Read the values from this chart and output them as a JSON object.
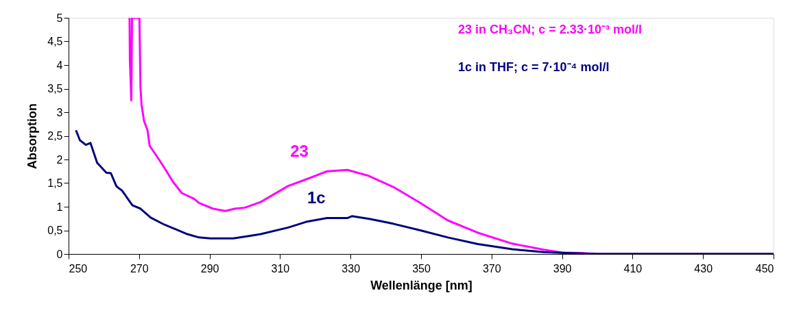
{
  "chart_data": {
    "type": "line",
    "xlabel": "Wellenlänge [nm]",
    "ylabel": "Absorption",
    "xlim": [
      250,
      450
    ],
    "xticks": [
      250,
      270,
      290,
      310,
      330,
      350,
      370,
      390,
      410,
      430,
      450
    ],
    "ylim": [
      0,
      5
    ],
    "yticks": [
      0,
      {
        "value": 0.5,
        "label": "0,5"
      },
      1,
      {
        "value": 1.5,
        "label": "1,5"
      },
      2,
      {
        "value": 2.5,
        "label": "2,5"
      },
      3,
      {
        "value": 3.5,
        "label": "3,5"
      },
      4,
      {
        "value": 4.5,
        "label": "4,5"
      },
      5
    ],
    "grid": false,
    "legend": "top right",
    "marker": "none",
    "line_style": "solid",
    "series": [
      {
        "name": "23 in CH₃CN; c = 2.33·10⁻³ mol/l",
        "color": "#ff00ff",
        "x": [
          267.3,
          267.4,
          267.8,
          268.0,
          270.1,
          270.4,
          270.7,
          271.4,
          272.4,
          273.0,
          275.3,
          277.8,
          279.5,
          282.1,
          285.6,
          287.0,
          290.9,
          294.4,
          297.3,
          300.0,
          304.5,
          312.3,
          317.4,
          323.3,
          329.1,
          334.9,
          342.1,
          349.8,
          357.6,
          366.1,
          375.8,
          384.8,
          390,
          395,
          400,
          450
        ],
        "values": [
          5,
          4.1,
          3.25,
          5,
          5,
          3.54,
          3.16,
          2.82,
          2.62,
          2.29,
          2.04,
          1.75,
          1.54,
          1.29,
          1.17,
          1.08,
          0.96,
          0.91,
          0.96,
          0.98,
          1.1,
          1.44,
          1.58,
          1.75,
          1.78,
          1.66,
          1.42,
          1.08,
          0.71,
          0.45,
          0.22,
          0.09,
          0.03,
          0.02,
          0,
          0
        ]
      },
      {
        "name": "1c in THF; c = 7·10⁻⁴ mol/l",
        "color": "#000080",
        "x": [
          252.1,
          253.2,
          254.9,
          256.2,
          258.1,
          260.7,
          262.0,
          263.6,
          265.2,
          268.1,
          270.4,
          273.3,
          277.2,
          280.5,
          283.7,
          287.0,
          290.2,
          296.7,
          301.2,
          304.5,
          312.3,
          317.4,
          323.3,
          329.1,
          330.4,
          335.6,
          342.1,
          349.8,
          357.6,
          366.1,
          375.8,
          384.8,
          395,
          400,
          450
        ],
        "values": [
          2.62,
          2.41,
          2.31,
          2.35,
          1.93,
          1.72,
          1.71,
          1.43,
          1.34,
          1.03,
          0.96,
          0.77,
          0.62,
          0.52,
          0.42,
          0.35,
          0.33,
          0.33,
          0.38,
          0.42,
          0.56,
          0.68,
          0.76,
          0.76,
          0.8,
          0.74,
          0.64,
          0.5,
          0.35,
          0.21,
          0.1,
          0.04,
          0.01,
          0,
          0
        ]
      }
    ],
    "annotations": [
      "23",
      "1c"
    ]
  }
}
